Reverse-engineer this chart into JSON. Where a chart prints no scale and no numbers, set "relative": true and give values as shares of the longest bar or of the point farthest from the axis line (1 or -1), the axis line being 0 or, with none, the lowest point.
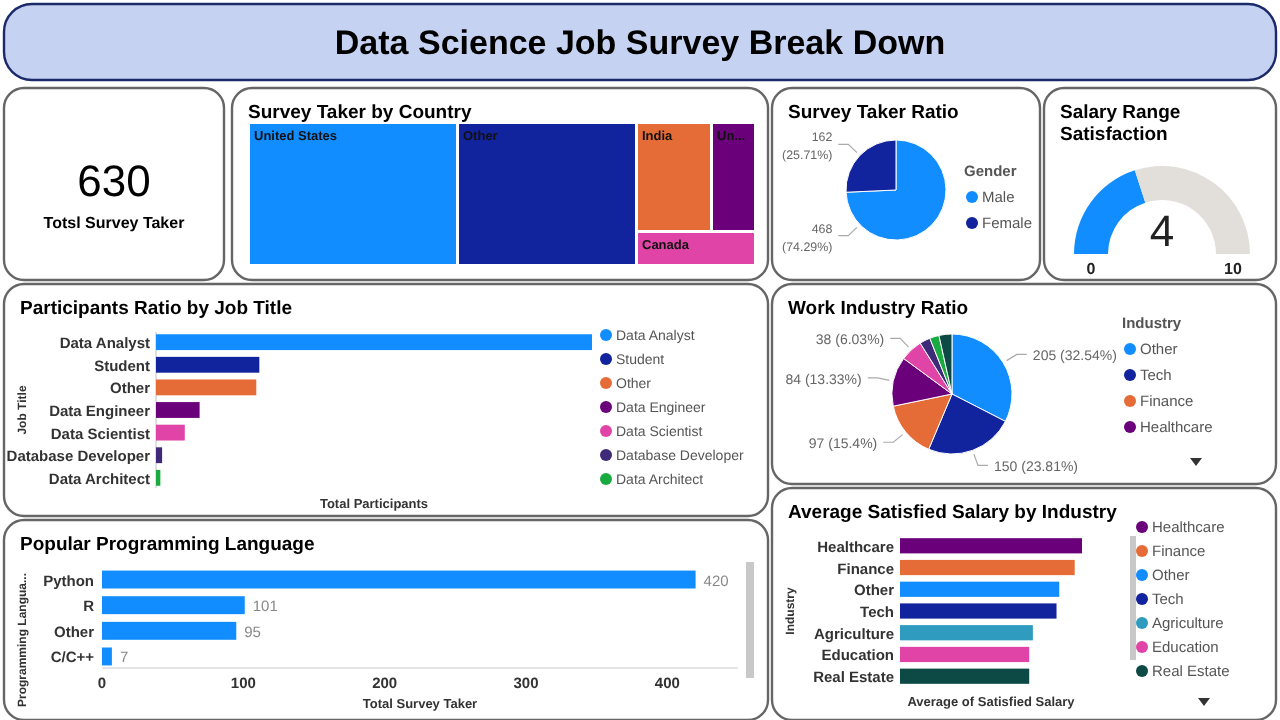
{
  "chart_data": [
    {
      "type": "other",
      "title": "Data Science Job Survey Break Down"
    },
    {
      "type": "other",
      "annotations": [
        "630",
        "Totsl Survey Taker"
      ]
    },
    {
      "type": "other",
      "title": "Survey Taker by Country",
      "categories": [
        "United States",
        "Other",
        "India",
        "Un...",
        "Canada"
      ],
      "colors": [
        "#118dff",
        "#12239e",
        "#e66c37",
        "#6b007b",
        "#e044a7"
      ]
    },
    {
      "type": "pie",
      "title": "Survey Taker Ratio",
      "legend_title": "Gender",
      "legend": "right",
      "categories": [
        "Male",
        "Female"
      ],
      "values": [
        468,
        162
      ],
      "colors": [
        "#118dff",
        "#12239e"
      ],
      "value_labels": [
        "468 (74.29%)",
        "162 (25.71%)"
      ]
    },
    {
      "type": "donut",
      "title": "Salary Range Satisfaction",
      "categories": [
        null,
        null
      ],
      "values": [
        40,
        60
      ],
      "colors": [
        "#118dff",
        "#e2dfdb"
      ],
      "annotations": [
        "4",
        "0",
        "10"
      ]
    },
    {
      "type": "bar",
      "orientation": "horizontal",
      "relative": true,
      "title": "Participants Ratio by Job Title",
      "xlabel": "Total Participants",
      "ylabel": "Job Title",
      "legend": "right",
      "categories": [
        "Data Analyst",
        "Student",
        "Other",
        "Data Engineer",
        "Data Scientist",
        "Database Developer",
        "Data Architect"
      ],
      "series": [
        {
          "name": "Data Analyst",
          "color": "#118dff",
          "values": [
            1,
            null,
            null,
            null,
            null,
            null,
            null
          ]
        },
        {
          "name": "Student",
          "color": "#12239e",
          "values": [
            null,
            0.237,
            null,
            null,
            null,
            null,
            null
          ]
        },
        {
          "name": "Other",
          "color": "#e66c37",
          "values": [
            null,
            null,
            0.23,
            null,
            null,
            null,
            null
          ]
        },
        {
          "name": "Data Engineer",
          "color": "#6b007b",
          "values": [
            null,
            null,
            null,
            0.1,
            null,
            null,
            null
          ]
        },
        {
          "name": "Data Scientist",
          "color": "#e044a7",
          "values": [
            null,
            null,
            null,
            null,
            0.066,
            null,
            null
          ]
        },
        {
          "name": "Database Developer",
          "color": "#3f2a7a",
          "values": [
            null,
            null,
            null,
            null,
            null,
            0.014,
            null
          ]
        },
        {
          "name": "Data Architect",
          "color": "#1aab40",
          "values": [
            null,
            null,
            null,
            null,
            null,
            null,
            0.01
          ]
        }
      ]
    },
    {
      "type": "pie",
      "title": "Work Industry Ratio",
      "legend_title": "Industry",
      "legend": "right",
      "categories": [
        "Other",
        "Tech",
        "Finance",
        "Healthcare",
        null,
        null,
        null,
        null
      ],
      "values": [
        205,
        150,
        97,
        84,
        38,
        18,
        16,
        22
      ],
      "colors": [
        "#118dff",
        "#12239e",
        "#e66c37",
        "#6b007b",
        "#e044a7",
        "#3f2a7a",
        "#1aab40",
        "#0e4a45"
      ],
      "value_labels": [
        "205 (32.54%)",
        "150 (23.81%)",
        "97 (15.4%)",
        "84 (13.33%)",
        "38 (6.03%)",
        null,
        null,
        null
      ]
    },
    {
      "type": "bar",
      "orientation": "horizontal",
      "title": "Popular Programming Language",
      "xlabel": "Total Survey Taker",
      "ylabel": "Programming Langua...",
      "categories": [
        "Python",
        "R",
        "Other",
        "C/C++"
      ],
      "values": [
        420,
        101,
        95,
        7
      ],
      "color": "#118dff",
      "xlim": [
        0,
        450
      ],
      "xticks": [
        0,
        100,
        200,
        300,
        400
      ],
      "data_labels": true
    },
    {
      "type": "bar",
      "orientation": "horizontal",
      "relative": true,
      "title": "Average Satisfied Salary by Industry",
      "xlabel": "Average of Satisfied Salary",
      "ylabel": "Industry",
      "legend": "right",
      "categories": [
        "Healthcare",
        "Finance",
        "Other",
        "Tech",
        "Agriculture",
        "Education",
        "Real Estate"
      ],
      "series": [
        {
          "name": "Healthcare",
          "color": "#6b007b",
          "values": [
            1,
            null,
            null,
            null,
            null,
            null,
            null
          ]
        },
        {
          "name": "Finance",
          "color": "#e66c37",
          "values": [
            null,
            0.96,
            null,
            null,
            null,
            null,
            null
          ]
        },
        {
          "name": "Other",
          "color": "#118dff",
          "values": [
            null,
            null,
            0.875,
            null,
            null,
            null,
            null
          ]
        },
        {
          "name": "Tech",
          "color": "#12239e",
          "values": [
            null,
            null,
            null,
            0.86,
            null,
            null,
            null
          ]
        },
        {
          "name": "Agriculture",
          "color": "#2e9bbf",
          "values": [
            null,
            null,
            null,
            null,
            0.73,
            null,
            null
          ]
        },
        {
          "name": "Education",
          "color": "#e044a7",
          "values": [
            null,
            null,
            null,
            null,
            null,
            0.71,
            null
          ]
        },
        {
          "name": "Real Estate",
          "color": "#0e4a45",
          "values": [
            null,
            null,
            null,
            null,
            null,
            null,
            0.71
          ]
        }
      ]
    }
  ]
}
